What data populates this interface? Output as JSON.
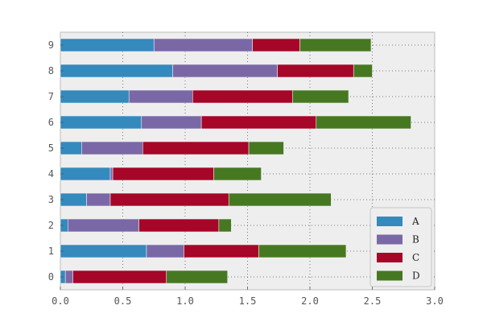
{
  "chart_data": {
    "type": "bar",
    "orientation": "horizontal",
    "stacked": true,
    "categories": [
      "0",
      "1",
      "2",
      "3",
      "4",
      "5",
      "6",
      "7",
      "8",
      "9"
    ],
    "series": [
      {
        "name": "A",
        "color": "#348ABD",
        "values": [
          0.04,
          0.69,
          0.06,
          0.21,
          0.4,
          0.17,
          0.65,
          0.55,
          0.9,
          0.75
        ]
      },
      {
        "name": "B",
        "color": "#7A68A6",
        "values": [
          0.06,
          0.3,
          0.57,
          0.19,
          0.02,
          0.49,
          0.48,
          0.51,
          0.84,
          0.79
        ]
      },
      {
        "name": "C",
        "color": "#A60628",
        "values": [
          0.75,
          0.6,
          0.64,
          0.95,
          0.81,
          0.85,
          0.92,
          0.8,
          0.61,
          0.38
        ]
      },
      {
        "name": "D",
        "color": "#467821",
        "values": [
          0.49,
          0.7,
          0.1,
          0.82,
          0.38,
          0.28,
          0.76,
          0.45,
          0.15,
          0.57
        ]
      }
    ],
    "xlim": [
      0,
      3.0
    ],
    "xticks": [
      "0.0",
      "0.5",
      "1.0",
      "1.5",
      "2.0",
      "2.5",
      "3.0"
    ],
    "grid": true,
    "legend_position": "lower-right",
    "background": "#EEEEEE"
  }
}
